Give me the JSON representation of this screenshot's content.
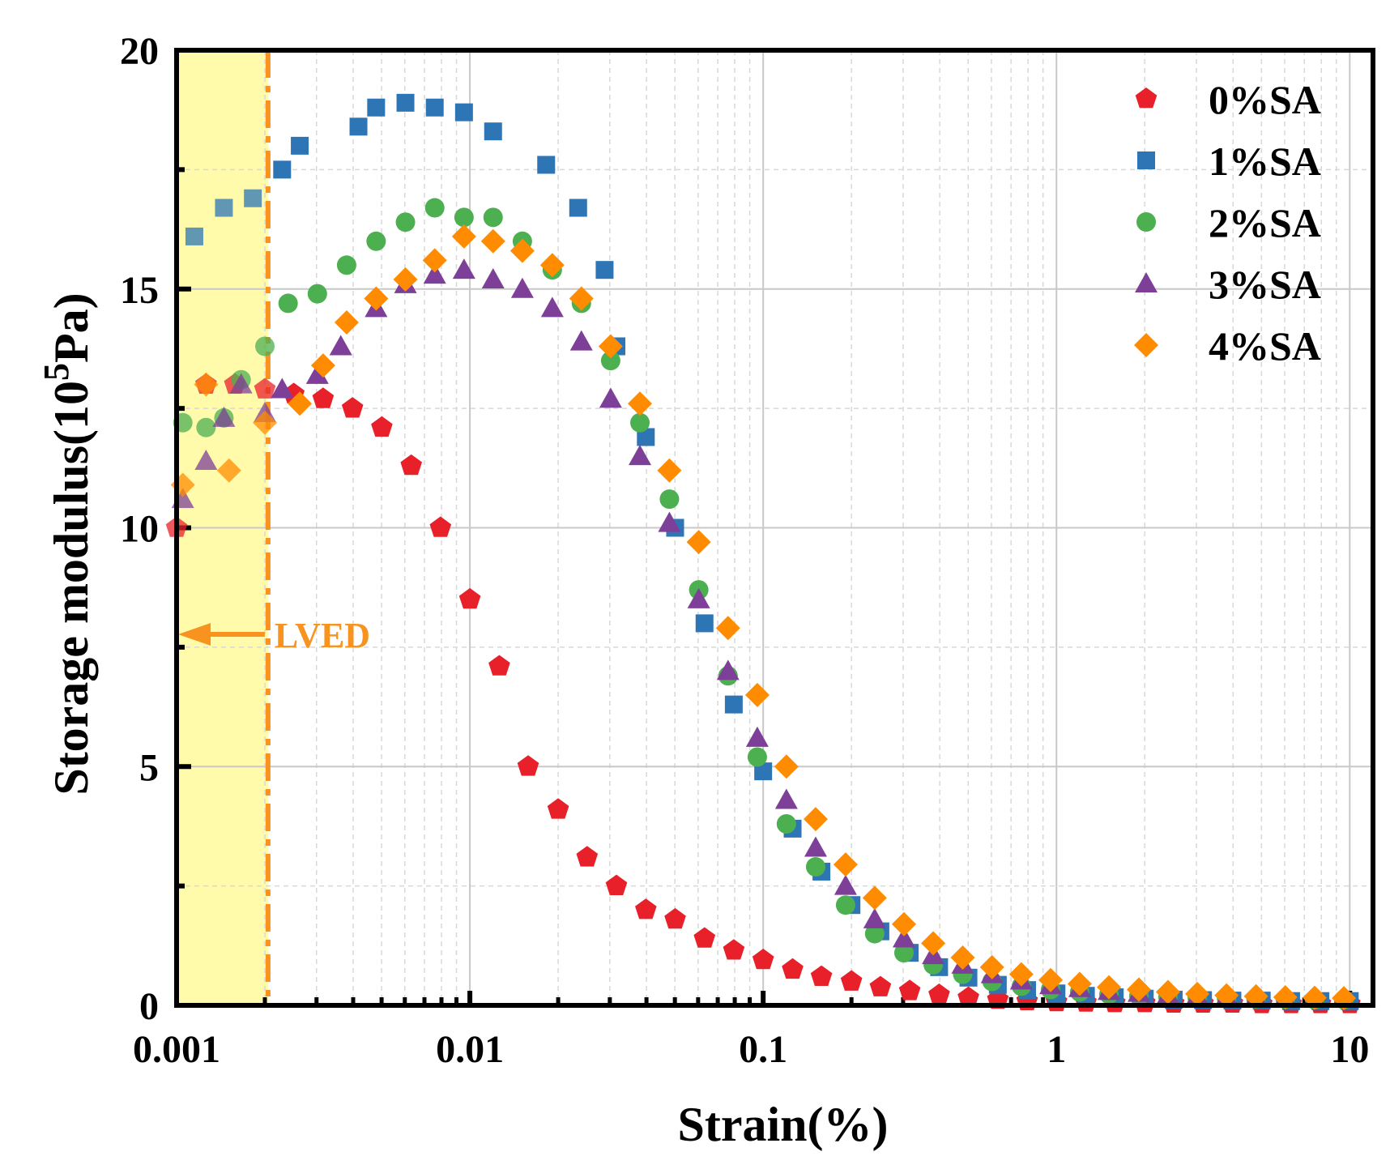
{
  "chart_data": {
    "type": "scatter",
    "xscale": "log",
    "xlabel": "Strain(%)",
    "ylabel_parts": {
      "base": "Storage modulus(10",
      "superscript": "5",
      "unit": "Pa)"
    },
    "xlim": [
      0.001,
      12
    ],
    "ylim": [
      0,
      20
    ],
    "x_ticks": [
      {
        "value": 0.001,
        "label": "0.001"
      },
      {
        "value": 0.01,
        "label": "0.01"
      },
      {
        "value": 0.1,
        "label": "0.1"
      },
      {
        "value": 1,
        "label": "1"
      },
      {
        "value": 10,
        "label": "10"
      }
    ],
    "y_ticks": [
      {
        "value": 0,
        "label": "0"
      },
      {
        "value": 5,
        "label": "5"
      },
      {
        "value": 10,
        "label": "10"
      },
      {
        "value": 15,
        "label": "15"
      },
      {
        "value": 20,
        "label": "20"
      }
    ],
    "grid": true,
    "legend_position": "top-right",
    "lved": {
      "x": 0.00205,
      "label": "LVED",
      "color": "#f7931e",
      "shade_color": "#fffbaa"
    },
    "series": [
      {
        "name": "0%SA",
        "marker": "pentagon",
        "color": "#e8202a",
        "x": [
          0.001,
          0.00126,
          0.00158,
          0.002,
          0.00251,
          0.00316,
          0.00398,
          0.00501,
          0.00631,
          0.00794,
          0.01,
          0.0126,
          0.0158,
          0.02,
          0.0251,
          0.0316,
          0.0398,
          0.0501,
          0.0631,
          0.0794,
          0.1,
          0.126,
          0.158,
          0.2,
          0.251,
          0.316,
          0.398,
          0.501,
          0.631,
          0.794,
          1,
          1.26,
          1.58,
          2,
          2.51,
          3.16,
          3.98,
          5.01,
          6.31,
          7.94,
          10
        ],
        "y": [
          10.0,
          13.0,
          13.0,
          12.9,
          12.8,
          12.7,
          12.5,
          12.1,
          11.3,
          10.0,
          8.5,
          7.1,
          5.0,
          4.1,
          3.1,
          2.5,
          2.0,
          1.8,
          1.4,
          1.15,
          0.95,
          0.75,
          0.6,
          0.5,
          0.38,
          0.3,
          0.22,
          0.16,
          0.12,
          0.09,
          0.07,
          0.06,
          0.05,
          0.05,
          0.04,
          0.04,
          0.04,
          0.03,
          0.03,
          0.03,
          0.03
        ]
      },
      {
        "name": "1%SA",
        "marker": "square",
        "color": "#2e75b6",
        "x": [
          0.00115,
          0.00145,
          0.00182,
          0.00229,
          0.00263,
          0.00417,
          0.00479,
          0.00603,
          0.00759,
          0.00955,
          0.012,
          0.0182,
          0.0234,
          0.0288,
          0.0316,
          0.0398,
          0.0501,
          0.0631,
          0.0794,
          0.1,
          0.126,
          0.158,
          0.2,
          0.251,
          0.316,
          0.398,
          0.501,
          0.631,
          0.794,
          1,
          1.26,
          1.58,
          2,
          2.51,
          3.16,
          3.98,
          5.01,
          6.31,
          7.94,
          10
        ],
        "y": [
          16.1,
          16.7,
          16.9,
          17.5,
          18.0,
          18.4,
          18.8,
          18.9,
          18.8,
          18.7,
          18.3,
          17.6,
          16.7,
          15.4,
          13.8,
          11.9,
          10.0,
          8.0,
          6.3,
          4.9,
          3.7,
          2.8,
          2.1,
          1.55,
          1.1,
          0.8,
          0.58,
          0.43,
          0.32,
          0.25,
          0.2,
          0.17,
          0.14,
          0.12,
          0.11,
          0.1,
          0.1,
          0.09,
          0.09,
          0.09
        ]
      },
      {
        "name": "2%SA",
        "marker": "circle",
        "color": "#4caf50",
        "x": [
          0.00105,
          0.00126,
          0.00145,
          0.00166,
          0.002,
          0.0024,
          0.00302,
          0.0038,
          0.00479,
          0.00603,
          0.00759,
          0.00955,
          0.012,
          0.0151,
          0.0191,
          0.024,
          0.0302,
          0.038,
          0.0479,
          0.0603,
          0.0759,
          0.0955,
          0.12,
          0.151,
          0.191,
          0.24,
          0.302,
          0.38,
          0.479,
          0.603,
          0.759,
          0.955,
          1.2,
          1.51,
          1.91,
          2.4,
          3.02,
          3.8,
          4.79,
          6.03,
          7.59,
          9.55
        ],
        "y": [
          12.2,
          12.1,
          12.3,
          13.1,
          13.8,
          14.7,
          14.9,
          15.5,
          16.0,
          16.4,
          16.7,
          16.5,
          16.5,
          16.0,
          15.4,
          14.7,
          13.5,
          12.2,
          10.6,
          8.7,
          6.9,
          5.2,
          3.8,
          2.9,
          2.1,
          1.5,
          1.1,
          0.85,
          0.65,
          0.5,
          0.4,
          0.33,
          0.28,
          0.23,
          0.2,
          0.18,
          0.16,
          0.15,
          0.14,
          0.13,
          0.12,
          0.12
        ]
      },
      {
        "name": "3%SA",
        "marker": "triangle",
        "color": "#7e3f98",
        "x": [
          0.00105,
          0.00126,
          0.00145,
          0.00166,
          0.002,
          0.00229,
          0.00302,
          0.00363,
          0.00479,
          0.00603,
          0.00759,
          0.00955,
          0.012,
          0.0151,
          0.0191,
          0.024,
          0.0302,
          0.038,
          0.0479,
          0.0603,
          0.0759,
          0.0955,
          0.12,
          0.151,
          0.191,
          0.24,
          0.302,
          0.38,
          0.479,
          0.603,
          0.759,
          0.955,
          1.2,
          1.51,
          1.91,
          2.4,
          3.02,
          3.8,
          4.79,
          6.03,
          7.59,
          9.55
        ],
        "y": [
          10.6,
          11.4,
          12.3,
          13.0,
          12.4,
          12.9,
          13.2,
          13.8,
          14.6,
          15.1,
          15.3,
          15.4,
          15.2,
          15.0,
          14.6,
          13.9,
          12.7,
          11.5,
          10.1,
          8.5,
          7.0,
          5.6,
          4.3,
          3.3,
          2.5,
          1.8,
          1.4,
          1.05,
          0.85,
          0.65,
          0.52,
          0.42,
          0.36,
          0.3,
          0.26,
          0.22,
          0.2,
          0.18,
          0.17,
          0.16,
          0.15,
          0.15
        ]
      },
      {
        "name": "4%SA",
        "marker": "diamond",
        "color": "#ff8c00",
        "x": [
          0.00105,
          0.00126,
          0.00151,
          0.002,
          0.00263,
          0.00316,
          0.0038,
          0.00479,
          0.00603,
          0.00759,
          0.00955,
          0.012,
          0.0151,
          0.0191,
          0.024,
          0.0302,
          0.038,
          0.0479,
          0.0603,
          0.0759,
          0.0955,
          0.12,
          0.151,
          0.191,
          0.24,
          0.302,
          0.38,
          0.479,
          0.603,
          0.759,
          0.955,
          1.2,
          1.51,
          1.91,
          2.4,
          3.02,
          3.8,
          4.79,
          6.03,
          7.59,
          9.55
        ],
        "y": [
          10.9,
          13.0,
          11.2,
          12.2,
          12.6,
          13.4,
          14.3,
          14.8,
          15.2,
          15.6,
          16.1,
          16.0,
          15.8,
          15.5,
          14.8,
          13.8,
          12.6,
          11.2,
          9.7,
          7.9,
          6.5,
          5.0,
          3.9,
          2.95,
          2.25,
          1.7,
          1.3,
          1.0,
          0.8,
          0.65,
          0.53,
          0.45,
          0.38,
          0.33,
          0.28,
          0.24,
          0.21,
          0.19,
          0.17,
          0.16,
          0.15
        ]
      }
    ]
  }
}
